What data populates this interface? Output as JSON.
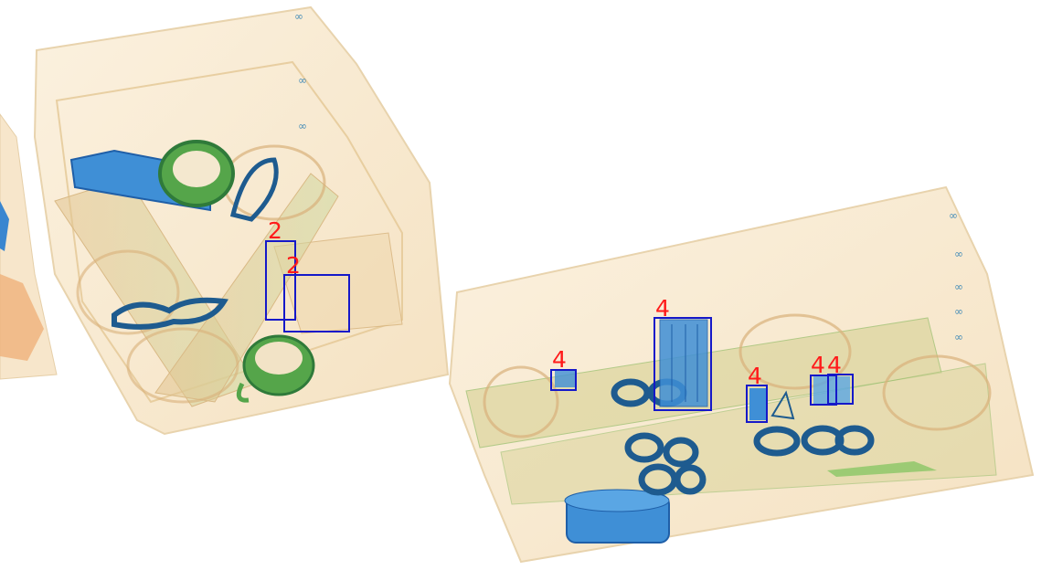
{
  "image": {
    "kind": "x-ray baggage scan",
    "colors": {
      "background": "#ffffff",
      "organic": "#e8b87a",
      "inorganic": "#5fb04a",
      "metal": "#1f6fc0",
      "box_outline": "#1518c9",
      "label_text": "#ff1a1a"
    }
  },
  "detections": [
    {
      "label": "2"
    },
    {
      "label": "2"
    },
    {
      "label": "4"
    },
    {
      "label": "4"
    },
    {
      "label": "4"
    },
    {
      "label": "4"
    },
    {
      "label": "4"
    }
  ]
}
